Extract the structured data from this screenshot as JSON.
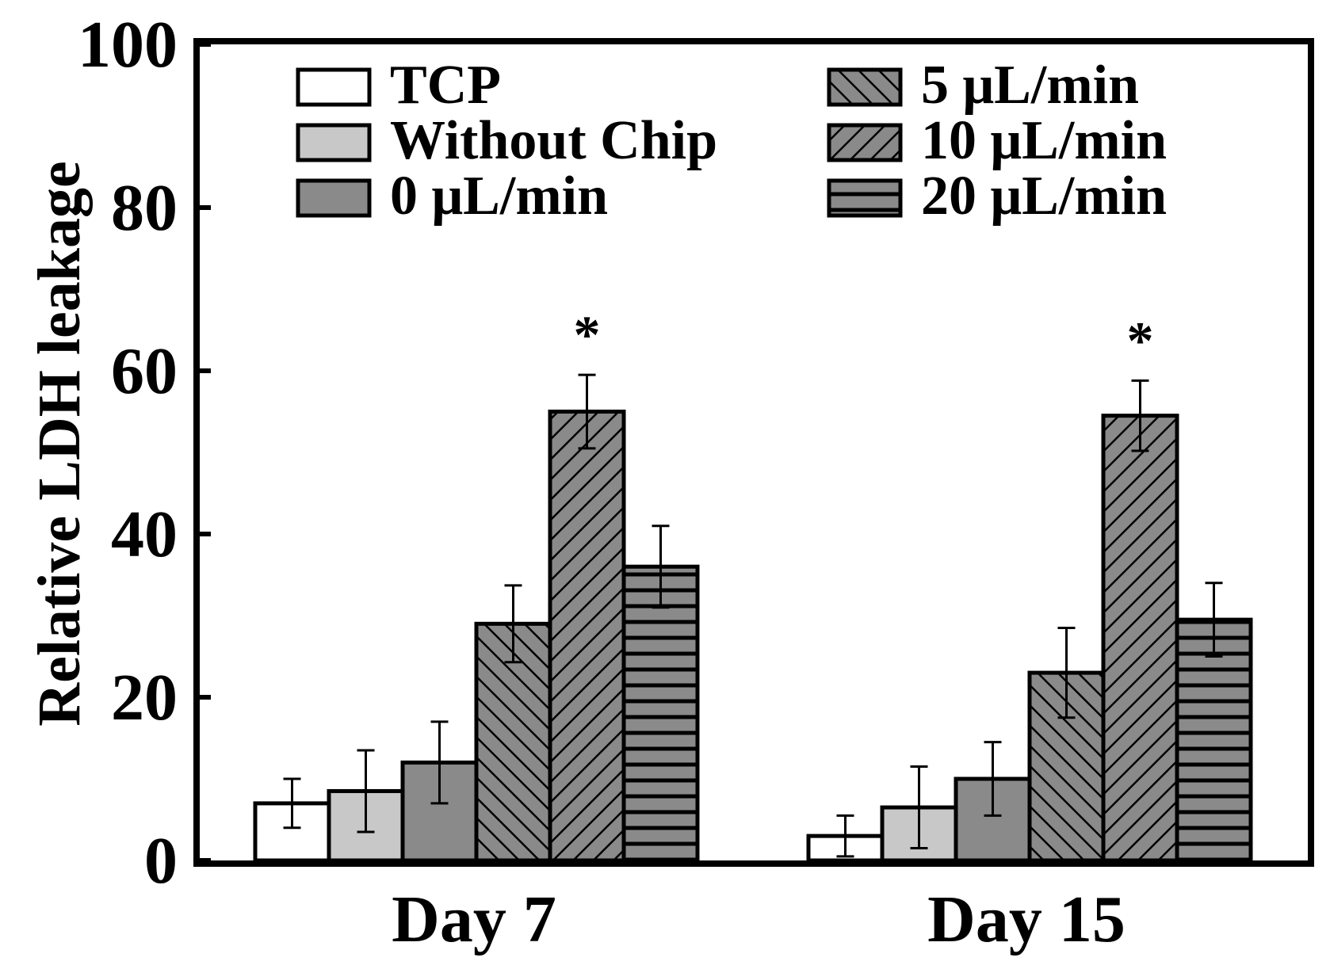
{
  "chart_data": {
    "type": "bar",
    "title": "",
    "xlabel": "",
    "ylabel": "Relative LDH leakage",
    "ylim": [
      0,
      100
    ],
    "yticks": [
      "0",
      "20",
      "40",
      "60",
      "80",
      "100"
    ],
    "grid": false,
    "legend_position": "top",
    "categories": [
      "Day 7",
      "Day 15"
    ],
    "series": [
      {
        "name": "TCP",
        "values": [
          7,
          3
        ],
        "errors": [
          3,
          2.5
        ],
        "fill": "#ffffff",
        "pattern": "none"
      },
      {
        "name": "Without Chip",
        "values": [
          8.5,
          6.5
        ],
        "errors": [
          5,
          5
        ],
        "fill": "#c8c8c8",
        "pattern": "none"
      },
      {
        "name": "0 μL/min",
        "values": [
          12,
          10
        ],
        "errors": [
          5,
          4.5
        ],
        "fill": "#8a8a8a",
        "pattern": "none"
      },
      {
        "name": "5 μL/min",
        "values": [
          29,
          23
        ],
        "errors": [
          4.7,
          5.5
        ],
        "fill": "#8a8a8a",
        "pattern": "backslash"
      },
      {
        "name": "10 μL/min",
        "values": [
          55,
          54.5
        ],
        "errors": [
          4.5,
          4.3
        ],
        "fill": "#8a8a8a",
        "pattern": "slash"
      },
      {
        "name": "20 μL/min",
        "values": [
          36,
          29.5
        ],
        "errors": [
          5,
          4.5
        ],
        "fill": "#8a8a8a",
        "pattern": "horizontal"
      }
    ],
    "annotations": [
      {
        "text": "*",
        "category": "Day 7",
        "series": "10 μL/min"
      },
      {
        "text": "*",
        "category": "Day 15",
        "series": "10 μL/min"
      }
    ]
  }
}
